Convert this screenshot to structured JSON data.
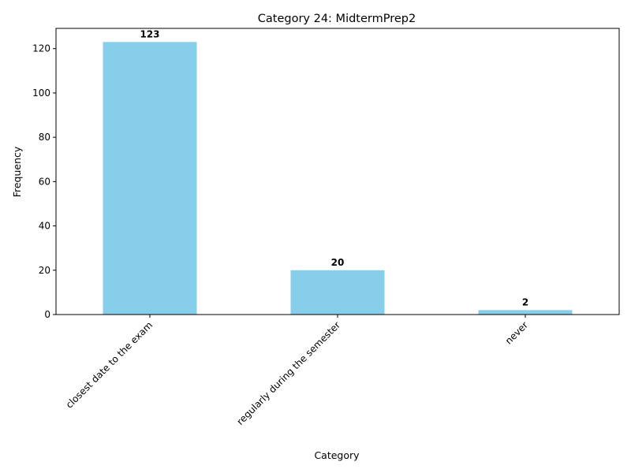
{
  "chart_data": {
    "type": "bar",
    "title": "Category 24: MidtermPrep2",
    "xlabel": "Category",
    "ylabel": "Frequency",
    "categories": [
      "closest date to the exam",
      "regularly during the semester",
      "never"
    ],
    "values": [
      123,
      20,
      2
    ],
    "data_labels": [
      "123",
      "20",
      "2"
    ],
    "ylim": [
      0,
      129.15
    ],
    "yticks": [
      0,
      20,
      40,
      60,
      80,
      100,
      120
    ],
    "ytick_labels": [
      "0",
      "20",
      "40",
      "60",
      "80",
      "100",
      "120"
    ],
    "bar_color": "#87CEEB",
    "grid": false,
    "legend": "none"
  }
}
